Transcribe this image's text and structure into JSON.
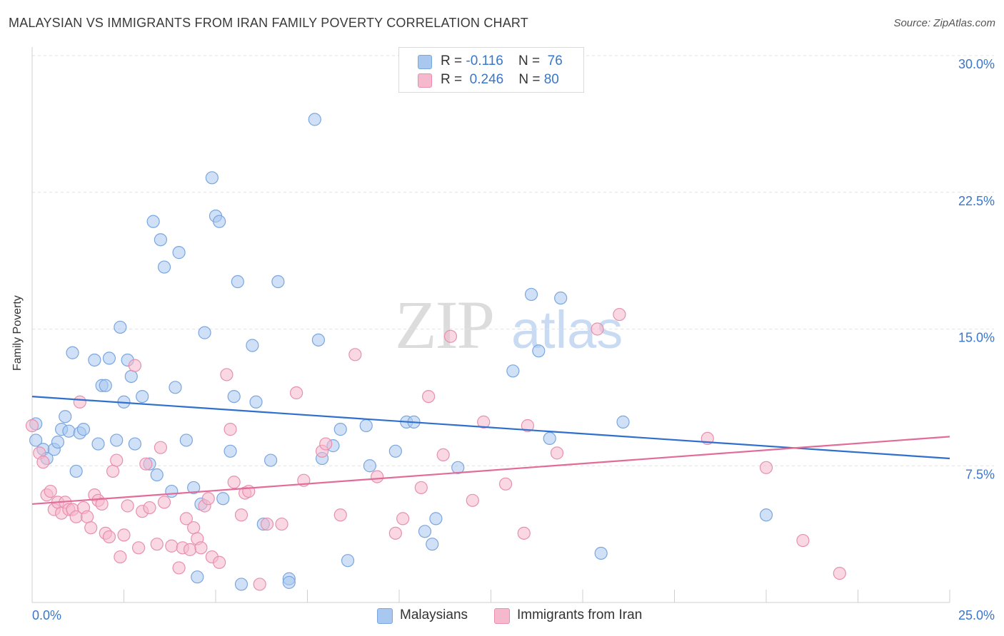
{
  "title": "MALAYSIAN VS IMMIGRANTS FROM IRAN FAMILY POVERTY CORRELATION CHART",
  "source": "Source: ZipAtlas.com",
  "watermark": {
    "zip": "ZIP",
    "atlas": "atlas"
  },
  "legend_top": [
    {
      "r_label": "R =",
      "r_value": "-0.116",
      "n_label": "N =",
      "n_value": "76",
      "color": "#a9c8f0"
    },
    {
      "r_label": "R =",
      "r_value": "0.246",
      "n_label": "N =",
      "n_value": "80",
      "color": "#f5b8cc"
    }
  ],
  "legend_bottom": [
    {
      "label": "Malaysians",
      "color": "#a9c8f0"
    },
    {
      "label": "Immigrants from Iran",
      "color": "#f5b8cc"
    }
  ],
  "colors": {
    "blue_fill": "#a9c8f0",
    "blue_stroke": "#7aa6df",
    "blue_line": "#2f6fcd",
    "pink_fill": "#f5b8cc",
    "pink_stroke": "#e790ad",
    "pink_line": "#e26b98",
    "axis_text": "#3a76c9",
    "grid": "#e2e2e2"
  },
  "chart_data": {
    "type": "scatter",
    "title": "MALAYSIAN VS IMMIGRANTS FROM IRAN FAMILY POVERTY CORRELATION CHART",
    "xlabel": "",
    "ylabel": "Family Poverty",
    "xlim": [
      0,
      25
    ],
    "ylim": [
      0,
      30.0
    ],
    "x_tick_labels": [
      "0.0%",
      "25.0%"
    ],
    "y_tick_labels": [
      "7.5%",
      "15.0%",
      "22.5%",
      "30.0%"
    ],
    "y_ticks": [
      7.5,
      15.0,
      22.5,
      30.0
    ],
    "grid": true,
    "legend_placement": "top-center",
    "series": [
      {
        "name": "Malaysians",
        "R": -0.116,
        "N": 76,
        "trend": {
          "x": [
            0,
            25
          ],
          "y": [
            11.3,
            7.9
          ]
        },
        "points": [
          [
            0.1,
            8.9
          ],
          [
            0.3,
            8.4
          ],
          [
            0.4,
            7.9
          ],
          [
            0.6,
            8.4
          ],
          [
            0.7,
            8.8
          ],
          [
            0.8,
            9.5
          ],
          [
            0.9,
            10.2
          ],
          [
            1.0,
            9.4
          ],
          [
            1.1,
            13.7
          ],
          [
            1.2,
            7.2
          ],
          [
            1.3,
            9.3
          ],
          [
            1.4,
            9.5
          ],
          [
            1.7,
            13.3
          ],
          [
            1.8,
            8.7
          ],
          [
            1.9,
            11.9
          ],
          [
            2.0,
            11.9
          ],
          [
            2.1,
            13.4
          ],
          [
            2.3,
            8.9
          ],
          [
            2.4,
            15.1
          ],
          [
            2.5,
            11.0
          ],
          [
            2.6,
            13.3
          ],
          [
            2.7,
            12.4
          ],
          [
            2.8,
            8.7
          ],
          [
            3.0,
            11.3
          ],
          [
            3.2,
            7.6
          ],
          [
            3.3,
            20.9
          ],
          [
            3.4,
            7.0
          ],
          [
            3.5,
            19.9
          ],
          [
            3.6,
            18.4
          ],
          [
            3.8,
            6.1
          ],
          [
            3.9,
            11.8
          ],
          [
            4.0,
            19.2
          ],
          [
            4.2,
            8.9
          ],
          [
            4.4,
            6.3
          ],
          [
            4.6,
            5.4
          ],
          [
            4.7,
            14.8
          ],
          [
            4.9,
            23.3
          ],
          [
            5.0,
            21.2
          ],
          [
            5.1,
            20.9
          ],
          [
            5.2,
            5.7
          ],
          [
            5.4,
            8.3
          ],
          [
            5.5,
            11.3
          ],
          [
            5.6,
            17.6
          ],
          [
            5.7,
            1.0
          ],
          [
            6.0,
            14.1
          ],
          [
            6.1,
            11.0
          ],
          [
            6.3,
            4.3
          ],
          [
            6.5,
            7.8
          ],
          [
            6.7,
            17.6
          ],
          [
            7.0,
            1.3
          ],
          [
            7.0,
            1.1
          ],
          [
            7.7,
            26.5
          ],
          [
            7.8,
            14.4
          ],
          [
            7.9,
            7.9
          ],
          [
            8.2,
            8.6
          ],
          [
            8.4,
            9.5
          ],
          [
            8.6,
            2.3
          ],
          [
            9.1,
            9.7
          ],
          [
            9.2,
            7.5
          ],
          [
            9.9,
            8.3
          ],
          [
            10.2,
            9.9
          ],
          [
            10.4,
            9.9
          ],
          [
            10.7,
            3.9
          ],
          [
            10.9,
            3.2
          ],
          [
            11.0,
            4.6
          ],
          [
            11.6,
            7.4
          ],
          [
            13.1,
            12.7
          ],
          [
            13.6,
            16.9
          ],
          [
            13.8,
            13.8
          ],
          [
            14.1,
            9.0
          ],
          [
            14.4,
            16.7
          ],
          [
            15.5,
            2.7
          ],
          [
            16.1,
            9.9
          ],
          [
            20.0,
            4.8
          ],
          [
            0.1,
            9.8
          ],
          [
            4.5,
            1.4
          ]
        ]
      },
      {
        "name": "Immigrants from Iran",
        "R": 0.246,
        "N": 80,
        "trend": {
          "x": [
            0,
            25
          ],
          "y": [
            5.4,
            9.1
          ]
        },
        "points": [
          [
            0.0,
            9.7
          ],
          [
            0.2,
            8.2
          ],
          [
            0.3,
            7.7
          ],
          [
            0.4,
            5.9
          ],
          [
            0.5,
            6.1
          ],
          [
            0.6,
            5.1
          ],
          [
            0.7,
            5.5
          ],
          [
            0.8,
            4.9
          ],
          [
            0.9,
            5.5
          ],
          [
            1.0,
            5.1
          ],
          [
            1.1,
            5.1
          ],
          [
            1.2,
            4.7
          ],
          [
            1.3,
            11.0
          ],
          [
            1.4,
            5.2
          ],
          [
            1.5,
            4.7
          ],
          [
            1.6,
            4.1
          ],
          [
            1.7,
            5.9
          ],
          [
            1.8,
            5.6
          ],
          [
            1.9,
            5.4
          ],
          [
            2.0,
            3.8
          ],
          [
            2.1,
            3.6
          ],
          [
            2.2,
            7.2
          ],
          [
            2.3,
            7.8
          ],
          [
            2.4,
            2.5
          ],
          [
            2.5,
            3.7
          ],
          [
            2.6,
            5.3
          ],
          [
            2.8,
            13.0
          ],
          [
            2.9,
            3.0
          ],
          [
            3.0,
            5.0
          ],
          [
            3.1,
            7.6
          ],
          [
            3.2,
            5.2
          ],
          [
            3.4,
            3.2
          ],
          [
            3.5,
            8.5
          ],
          [
            3.6,
            5.5
          ],
          [
            3.8,
            3.1
          ],
          [
            4.0,
            1.9
          ],
          [
            4.1,
            3.0
          ],
          [
            4.2,
            4.6
          ],
          [
            4.3,
            2.9
          ],
          [
            4.4,
            4.1
          ],
          [
            4.5,
            3.5
          ],
          [
            4.6,
            3.0
          ],
          [
            4.7,
            5.3
          ],
          [
            4.8,
            5.7
          ],
          [
            4.9,
            2.5
          ],
          [
            5.1,
            2.2
          ],
          [
            5.3,
            12.5
          ],
          [
            5.4,
            9.5
          ],
          [
            5.5,
            6.6
          ],
          [
            5.7,
            4.8
          ],
          [
            5.8,
            6.0
          ],
          [
            5.9,
            6.1
          ],
          [
            6.2,
            1.0
          ],
          [
            6.4,
            4.3
          ],
          [
            6.8,
            4.3
          ],
          [
            7.2,
            11.5
          ],
          [
            7.4,
            6.7
          ],
          [
            7.9,
            8.3
          ],
          [
            8.0,
            8.7
          ],
          [
            8.4,
            4.8
          ],
          [
            8.8,
            13.6
          ],
          [
            9.4,
            6.9
          ],
          [
            9.9,
            3.8
          ],
          [
            10.1,
            4.6
          ],
          [
            10.6,
            6.3
          ],
          [
            10.8,
            11.3
          ],
          [
            11.2,
            8.1
          ],
          [
            11.4,
            14.6
          ],
          [
            12.0,
            5.6
          ],
          [
            12.3,
            9.9
          ],
          [
            12.9,
            6.5
          ],
          [
            13.4,
            3.8
          ],
          [
            13.5,
            9.7
          ],
          [
            14.3,
            8.2
          ],
          [
            15.4,
            15.0
          ],
          [
            16.0,
            15.8
          ],
          [
            18.4,
            9.0
          ],
          [
            20.0,
            7.4
          ],
          [
            21.0,
            3.4
          ],
          [
            22.0,
            1.6
          ]
        ]
      }
    ]
  }
}
